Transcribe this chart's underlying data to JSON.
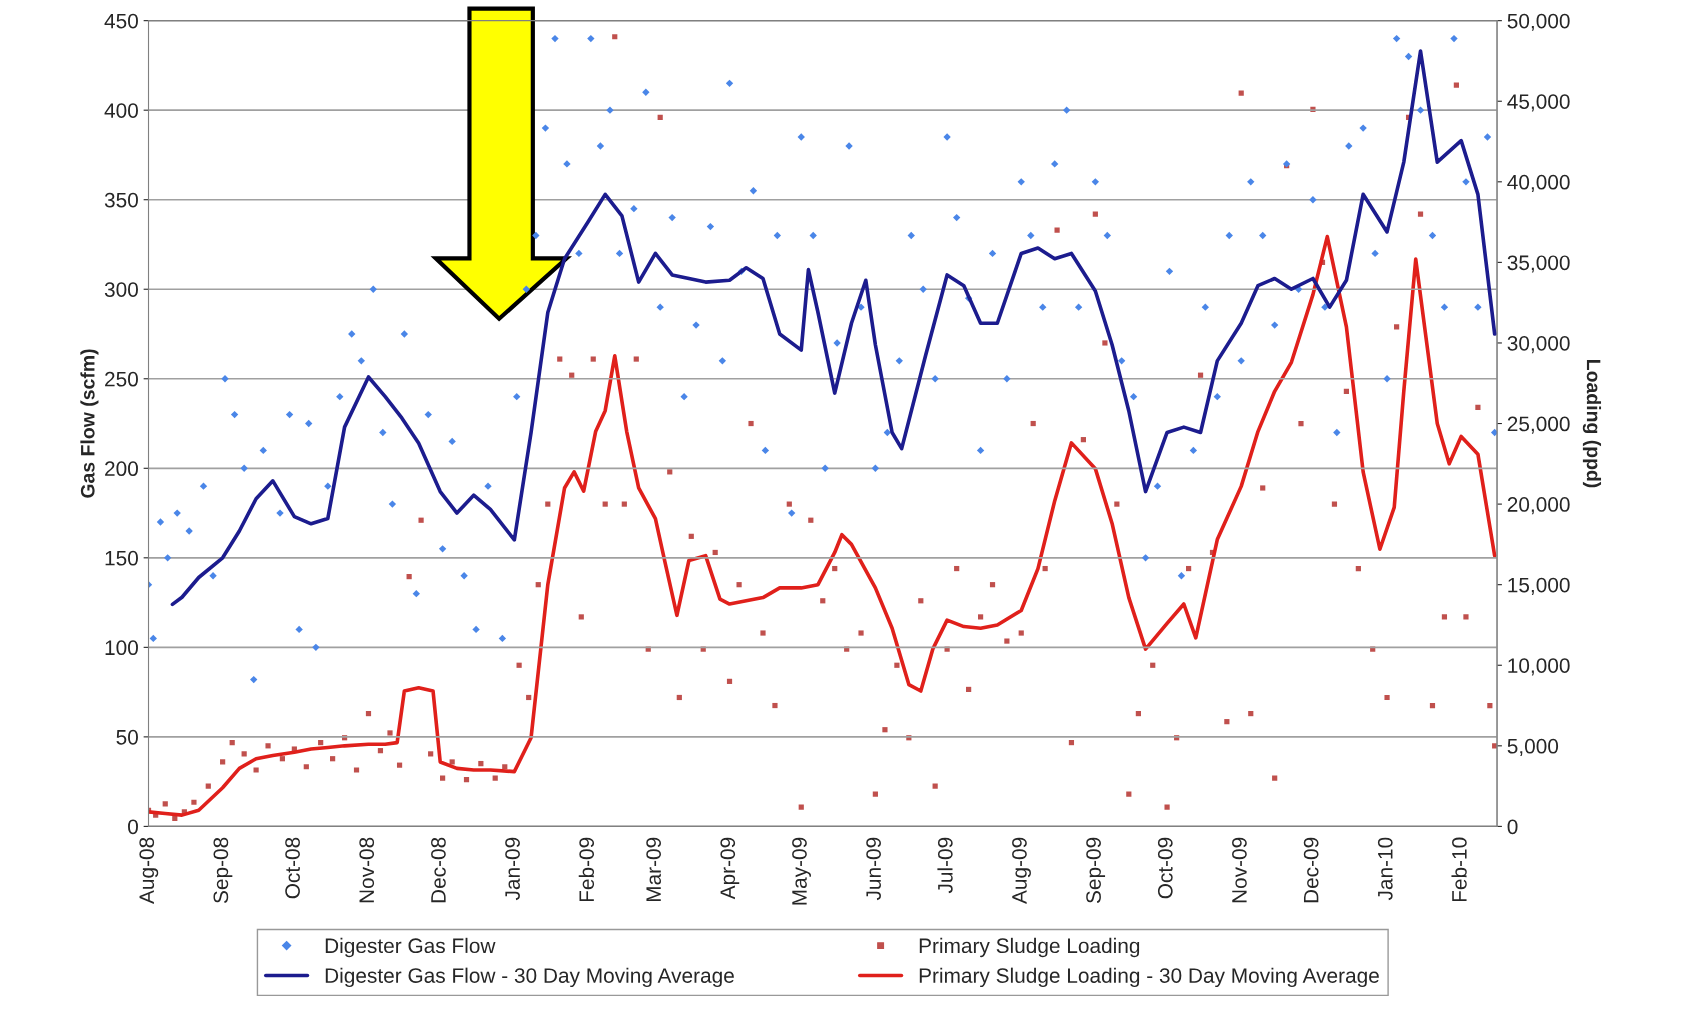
{
  "chart_data": {
    "type": "line",
    "ylabel": "Gas Flow (scfm)",
    "y2label": "Loading (ppd)",
    "xlim": [
      "2008-08-01",
      "2010-02-16"
    ],
    "xticks": [
      {
        "value": "2008-08-01",
        "label": "Aug-08"
      },
      {
        "value": "2008-09-01",
        "label": "Sep-08"
      },
      {
        "value": "2008-10-01",
        "label": "Oct-08"
      },
      {
        "value": "2008-11-01",
        "label": "Nov-08"
      },
      {
        "value": "2008-12-01",
        "label": "Dec-08"
      },
      {
        "value": "2009-01-01",
        "label": "Jan-09"
      },
      {
        "value": "2009-02-01",
        "label": "Feb-09"
      },
      {
        "value": "2009-03-01",
        "label": "Mar-09"
      },
      {
        "value": "2009-04-01",
        "label": "Apr-09"
      },
      {
        "value": "2009-05-01",
        "label": "May-09"
      },
      {
        "value": "2009-06-01",
        "label": "Jun-09"
      },
      {
        "value": "2009-07-01",
        "label": "Jul-09"
      },
      {
        "value": "2009-08-01",
        "label": "Aug-09"
      },
      {
        "value": "2009-09-01",
        "label": "Sep-09"
      },
      {
        "value": "2009-10-01",
        "label": "Oct-09"
      },
      {
        "value": "2009-11-01",
        "label": "Nov-09"
      },
      {
        "value": "2009-12-01",
        "label": "Dec-09"
      },
      {
        "value": "2010-01-01",
        "label": "Jan-10"
      },
      {
        "value": "2010-02-01",
        "label": "Feb-10"
      }
    ],
    "ylim": [
      0,
      450
    ],
    "yticks": [
      0,
      50,
      100,
      150,
      200,
      250,
      300,
      350,
      400,
      450
    ],
    "y2lim": [
      0,
      50000
    ],
    "y2ticks": [
      0,
      {
        "value": 5000,
        "label": "5,000"
      },
      {
        "value": 10000,
        "label": "10,000"
      },
      {
        "value": 15000,
        "label": "15,000"
      },
      {
        "value": 20000,
        "label": "20,000"
      },
      {
        "value": 25000,
        "label": "25,000"
      },
      {
        "value": 30000,
        "label": "30,000"
      },
      {
        "value": 35000,
        "label": "35,000"
      },
      {
        "value": 40000,
        "label": "40,000"
      },
      {
        "value": 45000,
        "label": "45,000"
      },
      {
        "value": 50000,
        "label": "50,000"
      }
    ],
    "grid": "y",
    "legend": "bottom",
    "series": [
      {
        "name": "Digester Gas Flow",
        "type": "scatter",
        "marker": "diamond",
        "color": "#4a86e8",
        "x": [
          "2008-08-01",
          "2008-08-03",
          "2008-08-06",
          "2008-08-09",
          "2008-08-13",
          "2008-08-18",
          "2008-08-24",
          "2008-08-28",
          "2008-09-02",
          "2008-09-06",
          "2008-09-10",
          "2008-09-14",
          "2008-09-18",
          "2008-09-25",
          "2008-09-29",
          "2008-10-03",
          "2008-10-07",
          "2008-10-10",
          "2008-10-15",
          "2008-10-20",
          "2008-10-25",
          "2008-10-29",
          "2008-11-03",
          "2008-11-07",
          "2008-11-11",
          "2008-11-16",
          "2008-11-21",
          "2008-11-26",
          "2008-12-02",
          "2008-12-06",
          "2008-12-11",
          "2008-12-16",
          "2008-12-21",
          "2008-12-27",
          "2009-01-02",
          "2009-01-06",
          "2009-01-10",
          "2009-01-14",
          "2009-01-18",
          "2009-01-23",
          "2009-01-28",
          "2009-02-02",
          "2009-02-06",
          "2009-02-10",
          "2009-02-14",
          "2009-02-20",
          "2009-02-25",
          "2009-03-03",
          "2009-03-08",
          "2009-03-13",
          "2009-03-18",
          "2009-03-24",
          "2009-03-29",
          "2009-04-01",
          "2009-04-06",
          "2009-04-11",
          "2009-04-16",
          "2009-04-21",
          "2009-04-27",
          "2009-05-01",
          "2009-05-06",
          "2009-05-11",
          "2009-05-16",
          "2009-05-21",
          "2009-05-26",
          "2009-06-01",
          "2009-06-06",
          "2009-06-11",
          "2009-06-16",
          "2009-06-21",
          "2009-06-26",
          "2009-07-01",
          "2009-07-05",
          "2009-07-10",
          "2009-07-15",
          "2009-07-20",
          "2009-07-26",
          "2009-08-01",
          "2009-08-05",
          "2009-08-10",
          "2009-08-15",
          "2009-08-20",
          "2009-08-25",
          "2009-09-01",
          "2009-09-06",
          "2009-09-12",
          "2009-09-17",
          "2009-09-22",
          "2009-09-27",
          "2009-10-02",
          "2009-10-07",
          "2009-10-12",
          "2009-10-17",
          "2009-10-22",
          "2009-10-27",
          "2009-11-01",
          "2009-11-05",
          "2009-11-10",
          "2009-11-15",
          "2009-11-20",
          "2009-11-25",
          "2009-12-01",
          "2009-12-06",
          "2009-12-11",
          "2009-12-16",
          "2009-12-22",
          "2009-12-27",
          "2010-01-01",
          "2010-01-05",
          "2010-01-10",
          "2010-01-15",
          "2010-01-20",
          "2010-01-25",
          "2010-01-29",
          "2010-02-03",
          "2010-02-08",
          "2010-02-12",
          "2010-02-15"
        ],
        "values": [
          135,
          105,
          170,
          150,
          175,
          165,
          190,
          140,
          250,
          230,
          200,
          82,
          210,
          175,
          230,
          110,
          225,
          100,
          190,
          240,
          275,
          260,
          300,
          220,
          180,
          275,
          130,
          230,
          155,
          215,
          140,
          110,
          190,
          105,
          240,
          300,
          330,
          390,
          440,
          370,
          320,
          440,
          380,
          400,
          320,
          345,
          410,
          290,
          340,
          240,
          280,
          335,
          260,
          415,
          310,
          355,
          210,
          330,
          175,
          385,
          330,
          200,
          270,
          380,
          290,
          200,
          220,
          260,
          330,
          300,
          250,
          385,
          340,
          295,
          210,
          320,
          250,
          360,
          330,
          290,
          370,
          400,
          290,
          360,
          330,
          260,
          240,
          150,
          190,
          310,
          140,
          210,
          290,
          240,
          330,
          260,
          360,
          330,
          280,
          370,
          300,
          350,
          290,
          220,
          380,
          390,
          320,
          250,
          440,
          430,
          400,
          330,
          290,
          440,
          360,
          290,
          385,
          220
        ]
      },
      {
        "name": "Digester Gas Flow - 30 Day Moving Average",
        "marker": "none",
        "line_style": "solid",
        "color": "#1c1c8e",
        "x": [
          "2008-08-11",
          "2008-08-15",
          "2008-08-22",
          "2008-09-01",
          "2008-09-08",
          "2008-09-15",
          "2008-09-22",
          "2008-10-01",
          "2008-10-08",
          "2008-10-15",
          "2008-10-22",
          "2008-11-01",
          "2008-11-08",
          "2008-11-15",
          "2008-11-22",
          "2008-12-01",
          "2008-12-08",
          "2008-12-15",
          "2008-12-22",
          "2009-01-01",
          "2009-01-08",
          "2009-01-15",
          "2009-01-22",
          "2009-02-01",
          "2009-02-08",
          "2009-02-15",
          "2009-02-22",
          "2009-03-01",
          "2009-03-08",
          "2009-03-15",
          "2009-03-22",
          "2009-04-01",
          "2009-04-08",
          "2009-04-15",
          "2009-04-22",
          "2009-05-01",
          "2009-05-04",
          "2009-05-08",
          "2009-05-15",
          "2009-05-22",
          "2009-05-28",
          "2009-06-01",
          "2009-06-08",
          "2009-06-12",
          "2009-06-22",
          "2009-07-01",
          "2009-07-08",
          "2009-07-15",
          "2009-07-22",
          "2009-08-01",
          "2009-08-08",
          "2009-08-15",
          "2009-08-22",
          "2009-09-01",
          "2009-09-08",
          "2009-09-15",
          "2009-09-22",
          "2009-10-01",
          "2009-10-08",
          "2009-10-15",
          "2009-10-22",
          "2009-11-01",
          "2009-11-08",
          "2009-11-15",
          "2009-11-22",
          "2009-12-01",
          "2009-12-08",
          "2009-12-15",
          "2009-12-22",
          "2010-01-01",
          "2010-01-08",
          "2010-01-15",
          "2010-01-22",
          "2010-02-01",
          "2010-02-08",
          "2010-02-15"
        ],
        "values": [
          124,
          128,
          139,
          150,
          165,
          183,
          193,
          173,
          169,
          172,
          223,
          251,
          240,
          228,
          214,
          187,
          175,
          185,
          177,
          160,
          220,
          287,
          317,
          338,
          353,
          341,
          304,
          320,
          308,
          306,
          304,
          305,
          312,
          306,
          275,
          266,
          311,
          287,
          242,
          281,
          305,
          269,
          220,
          211,
          263,
          308,
          302,
          281,
          281,
          320,
          323,
          317,
          320,
          299,
          269,
          232,
          187,
          220,
          223,
          220,
          260,
          281,
          302,
          306,
          300,
          306,
          290,
          305,
          353,
          332,
          371,
          433,
          371,
          383,
          353,
          275
        ]
      },
      {
        "name": "Primary Sludge Loading",
        "type": "scatter",
        "axis": "y2",
        "marker": "square",
        "color": "#c0504d",
        "x": [
          "2008-08-01",
          "2008-08-04",
          "2008-08-08",
          "2008-08-12",
          "2008-08-16",
          "2008-08-20",
          "2008-08-26",
          "2008-09-01",
          "2008-09-05",
          "2008-09-10",
          "2008-09-15",
          "2008-09-20",
          "2008-09-26",
          "2008-10-01",
          "2008-10-06",
          "2008-10-12",
          "2008-10-17",
          "2008-10-22",
          "2008-10-27",
          "2008-11-01",
          "2008-11-06",
          "2008-11-10",
          "2008-11-14",
          "2008-11-18",
          "2008-11-23",
          "2008-11-27",
          "2008-12-02",
          "2008-12-06",
          "2008-12-12",
          "2008-12-18",
          "2008-12-24",
          "2008-12-28",
          "2009-01-03",
          "2009-01-07",
          "2009-01-11",
          "2009-01-15",
          "2009-01-20",
          "2009-01-25",
          "2009-01-29",
          "2009-02-03",
          "2009-02-08",
          "2009-02-12",
          "2009-02-16",
          "2009-02-21",
          "2009-02-26",
          "2009-03-03",
          "2009-03-07",
          "2009-03-11",
          "2009-03-16",
          "2009-03-21",
          "2009-03-26",
          "2009-04-01",
          "2009-04-05",
          "2009-04-10",
          "2009-04-15",
          "2009-04-20",
          "2009-04-26",
          "2009-05-01",
          "2009-05-05",
          "2009-05-10",
          "2009-05-15",
          "2009-05-20",
          "2009-05-26",
          "2009-06-01",
          "2009-06-05",
          "2009-06-10",
          "2009-06-15",
          "2009-06-20",
          "2009-06-26",
          "2009-07-01",
          "2009-07-05",
          "2009-07-10",
          "2009-07-15",
          "2009-07-20",
          "2009-07-26",
          "2009-08-01",
          "2009-08-06",
          "2009-08-11",
          "2009-08-16",
          "2009-08-22",
          "2009-08-27",
          "2009-09-01",
          "2009-09-05",
          "2009-09-10",
          "2009-09-15",
          "2009-09-19",
          "2009-09-25",
          "2009-10-01",
          "2009-10-05",
          "2009-10-10",
          "2009-10-15",
          "2009-10-20",
          "2009-10-26",
          "2009-11-01",
          "2009-11-05",
          "2009-11-10",
          "2009-11-15",
          "2009-11-20",
          "2009-11-26",
          "2009-12-01",
          "2009-12-05",
          "2009-12-10",
          "2009-12-15",
          "2009-12-20",
          "2009-12-26",
          "2010-01-01",
          "2010-01-05",
          "2010-01-10",
          "2010-01-15",
          "2010-01-20",
          "2010-01-25",
          "2010-01-30",
          "2010-02-03",
          "2010-02-08",
          "2010-02-13",
          "2010-02-15"
        ],
        "values": [
          1000,
          700,
          1400,
          500,
          900,
          1500,
          2500,
          4000,
          5200,
          4500,
          3500,
          5000,
          4200,
          4800,
          3700,
          5200,
          4200,
          5500,
          3500,
          7000,
          4700,
          5800,
          3800,
          15500,
          19000,
          4500,
          3000,
          4000,
          2900,
          3900,
          3000,
          3700,
          10000,
          8000,
          15000,
          20000,
          29000,
          28000,
          13000,
          29000,
          20000,
          49000,
          20000,
          29000,
          11000,
          44000,
          22000,
          8000,
          18000,
          11000,
          17000,
          9000,
          15000,
          25000,
          12000,
          7500,
          20000,
          1200,
          19000,
          14000,
          16000,
          11000,
          12000,
          2000,
          6000,
          10000,
          5500,
          14000,
          2500,
          11000,
          16000,
          8500,
          13000,
          15000,
          11500,
          12000,
          25000,
          16000,
          37000,
          5200,
          24000,
          38000,
          30000,
          20000,
          2000,
          7000,
          10000,
          1200,
          5500,
          16000,
          28000,
          17000,
          6500,
          45500,
          7000,
          21000,
          3000,
          41000,
          25000,
          44500,
          35000,
          20000,
          27000,
          16000,
          11000,
          8000,
          31000,
          44000,
          38000,
          7500,
          13000,
          46000,
          13000,
          26000,
          7500,
          5000
        ]
      },
      {
        "name": "Primary Sludge Loading - 30 Day Moving Average",
        "axis": "y2",
        "marker": "none",
        "line_style": "solid",
        "color": "#e0201b",
        "x": [
          "2008-08-01",
          "2008-08-08",
          "2008-08-15",
          "2008-08-22",
          "2008-09-01",
          "2008-09-08",
          "2008-09-15",
          "2008-09-22",
          "2008-10-01",
          "2008-10-08",
          "2008-10-15",
          "2008-10-22",
          "2008-11-01",
          "2008-11-08",
          "2008-11-13",
          "2008-11-16",
          "2008-11-22",
          "2008-11-28",
          "2008-12-01",
          "2008-12-08",
          "2008-12-15",
          "2008-12-22",
          "2009-01-01",
          "2009-01-08",
          "2009-01-15",
          "2009-01-22",
          "2009-01-26",
          "2009-01-30",
          "2009-02-04",
          "2009-02-08",
          "2009-02-12",
          "2009-02-17",
          "2009-02-22",
          "2009-03-01",
          "2009-03-05",
          "2009-03-10",
          "2009-03-15",
          "2009-03-22",
          "2009-03-28",
          "2009-04-01",
          "2009-04-08",
          "2009-04-15",
          "2009-04-22",
          "2009-05-01",
          "2009-05-08",
          "2009-05-15",
          "2009-05-18",
          "2009-05-22",
          "2009-06-01",
          "2009-06-08",
          "2009-06-15",
          "2009-06-20",
          "2009-06-25",
          "2009-07-01",
          "2009-07-08",
          "2009-07-15",
          "2009-07-22",
          "2009-08-01",
          "2009-08-08",
          "2009-08-15",
          "2009-08-22",
          "2009-09-01",
          "2009-09-08",
          "2009-09-15",
          "2009-09-22",
          "2009-10-01",
          "2009-10-08",
          "2009-10-13",
          "2009-10-22",
          "2009-11-01",
          "2009-11-08",
          "2009-11-15",
          "2009-11-22",
          "2009-12-01",
          "2009-12-07",
          "2009-12-15",
          "2009-12-22",
          "2009-12-29",
          "2010-01-04",
          "2010-01-08",
          "2010-01-13",
          "2010-01-22",
          "2010-01-27",
          "2010-02-01",
          "2010-02-08",
          "2010-02-15"
        ],
        "values": [
          900,
          800,
          700,
          1000,
          2400,
          3600,
          4200,
          4400,
          4600,
          4800,
          4900,
          5000,
          5100,
          5100,
          5200,
          8400,
          8600,
          8400,
          4000,
          3600,
          3500,
          3500,
          3400,
          5500,
          15000,
          21000,
          22000,
          20800,
          24500,
          25800,
          29200,
          24500,
          21000,
          19100,
          16400,
          13100,
          16500,
          16800,
          14100,
          13800,
          14000,
          14200,
          14800,
          14800,
          15000,
          17000,
          18100,
          17500,
          14800,
          12300,
          8800,
          8400,
          11000,
          12800,
          12400,
          12300,
          12500,
          13400,
          16000,
          20200,
          23800,
          22200,
          18800,
          14200,
          11000,
          12600,
          13800,
          11700,
          17800,
          21100,
          24500,
          27000,
          28800,
          33000,
          36600,
          31000,
          22000,
          17200,
          19800,
          27000,
          35200,
          25000,
          22500,
          24200,
          23100,
          16800
        ]
      }
    ]
  }
}
